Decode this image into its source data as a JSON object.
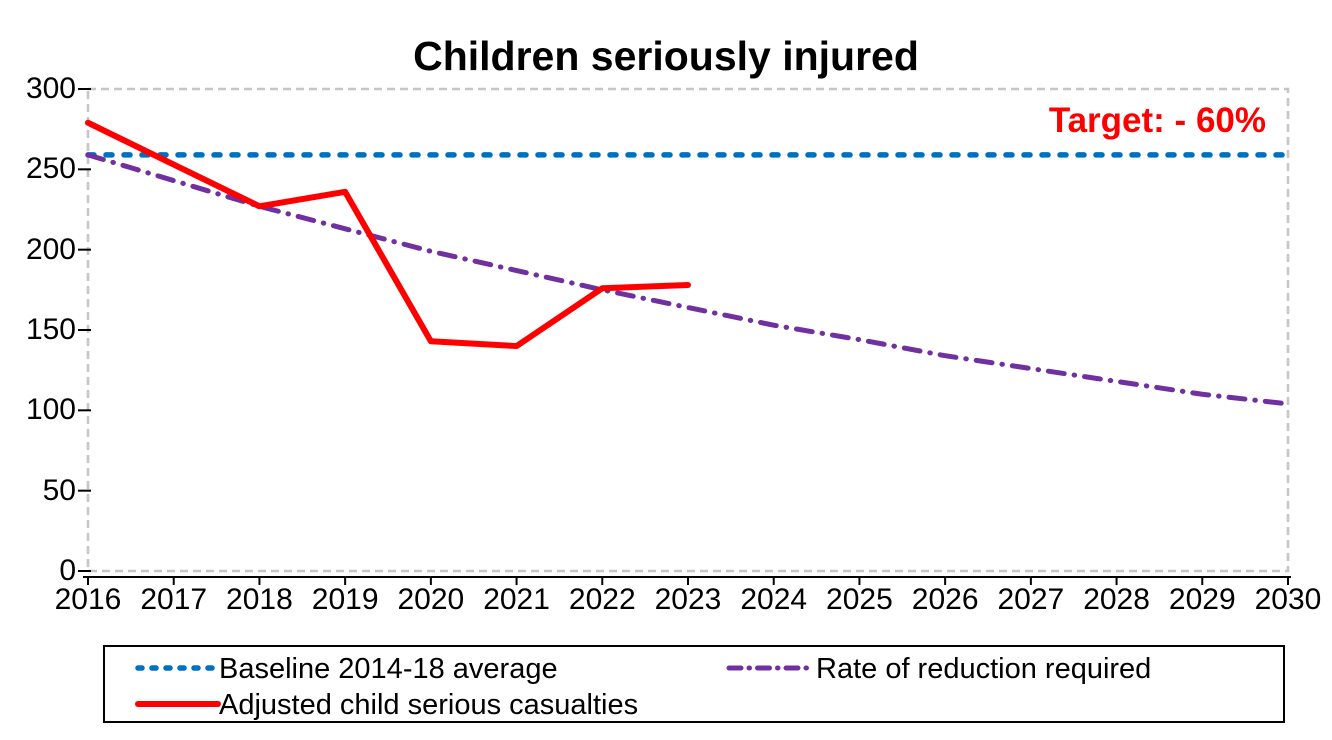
{
  "chart_data": {
    "type": "line",
    "title": "Children seriously injured",
    "annotation": {
      "text": "Target: - 60%",
      "color": "#FF0000"
    },
    "x": [
      "2016",
      "2017",
      "2018",
      "2019",
      "2020",
      "2021",
      "2022",
      "2023",
      "2024",
      "2025",
      "2026",
      "2027",
      "2028",
      "2029",
      "2030"
    ],
    "ylim": [
      0,
      300
    ],
    "yticks": [
      0,
      50,
      100,
      150,
      200,
      250,
      300
    ],
    "grid": false,
    "legend_position": "bottom",
    "plot_border_color": "#C6C6C6",
    "axis_color": "#000000",
    "series": [
      {
        "name": "Baseline 2014-18 average",
        "color": "#0070C0",
        "line_style": "dashed",
        "values": [
          259,
          259,
          259,
          259,
          259,
          259,
          259,
          259,
          259,
          259,
          259,
          259,
          259,
          259,
          259
        ]
      },
      {
        "name": "Rate of reduction required",
        "color": "#7030A0",
        "line_style": "dash-dot",
        "values": [
          259,
          243,
          227,
          213,
          199,
          187,
          175,
          164,
          153,
          144,
          134,
          126,
          118,
          110,
          104
        ]
      },
      {
        "name": "Adjusted child serious casualties",
        "color": "#FF0000",
        "line_style": "solid",
        "values": [
          279,
          253,
          227,
          236,
          143,
          140,
          176,
          178
        ]
      }
    ]
  }
}
